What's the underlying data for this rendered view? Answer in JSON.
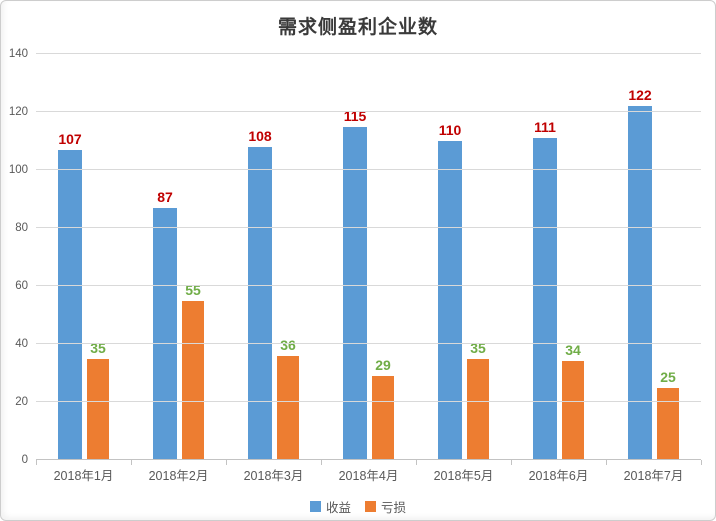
{
  "chart_data": {
    "type": "bar",
    "title": "需求侧盈利企业数",
    "categories": [
      "2018年1月",
      "2018年2月",
      "2018年3月",
      "2018年4月",
      "2018年5月",
      "2018年6月",
      "2018年7月"
    ],
    "series": [
      {
        "name": "收益",
        "color": "#5b9bd5",
        "label_color": "#c00000",
        "values": [
          107,
          87,
          108,
          115,
          110,
          111,
          122
        ]
      },
      {
        "name": "亏损",
        "color": "#ed7d31",
        "label_color": "#70ad47",
        "values": [
          35,
          55,
          36,
          29,
          35,
          34,
          25
        ]
      }
    ],
    "xlabel": "",
    "ylabel": "",
    "ylim": [
      0,
      140
    ],
    "yticks": [
      0,
      20,
      40,
      60,
      80,
      100,
      120,
      140
    ],
    "grid": true,
    "legend_position": "bottom"
  },
  "colors": {
    "gridline": "#d9d9d9",
    "axis_line": "#c3c3c3",
    "tick_text": "#595959",
    "title_text": "#3a3a3a"
  }
}
